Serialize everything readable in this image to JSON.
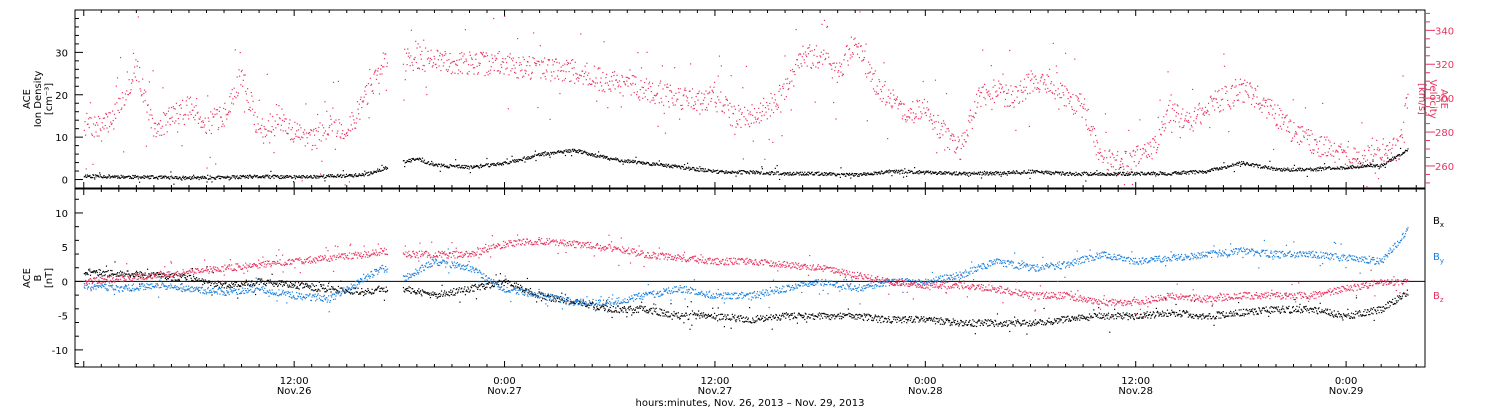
{
  "chart_data": [
    {
      "type": "scatter",
      "panel": "top",
      "x_unit": "hours since 2013-11-26 00:00 UT",
      "xlim": [
        -0.5,
        76.5
      ],
      "left_axis": {
        "label_lines": [
          "ACE",
          "Ion Density",
          "[cm⁻³]"
        ],
        "ylim": [
          -2,
          40
        ],
        "ticks": [
          0,
          10,
          20,
          30
        ]
      },
      "right_axis": {
        "label_lines": [
          "ACE",
          "Velocity",
          "[km/s]"
        ],
        "ylim": [
          247,
          352
        ],
        "ticks": [
          260,
          280,
          300,
          320,
          340
        ],
        "color": "#e8335f"
      },
      "series": [
        {
          "name": "Ion Density",
          "axis": "left",
          "color": "#000000",
          "x": [
            0,
            2,
            4,
            6,
            8,
            10,
            12,
            14,
            16,
            18,
            19,
            20,
            22,
            24,
            26,
            28,
            30,
            32,
            34,
            35,
            36,
            38,
            40,
            42,
            44,
            46,
            48,
            50,
            52,
            54,
            56,
            58,
            60,
            62,
            64,
            66,
            68,
            70,
            72,
            74,
            75.5
          ],
          "y": [
            1,
            0.8,
            0.6,
            0.5,
            0.6,
            0.8,
            0.7,
            0.9,
            1.2,
            4,
            5,
            3.5,
            3,
            4,
            6,
            7,
            5,
            4,
            3,
            2.5,
            2,
            1.8,
            1.5,
            1.5,
            1.2,
            2,
            1.8,
            1.5,
            1.6,
            2,
            1.5,
            1.4,
            1.5,
            1.6,
            2,
            4,
            2.5,
            2.5,
            3,
            3.5,
            7
          ]
        },
        {
          "name": "Velocity",
          "axis": "right",
          "color": "#e8335f",
          "x": [
            0,
            1,
            2,
            3,
            4,
            5,
            6,
            7,
            8,
            9,
            10,
            11,
            12,
            13,
            14,
            15,
            16,
            17,
            18,
            19,
            20,
            22,
            24,
            26,
            28,
            30,
            32,
            34,
            36,
            37,
            38,
            39,
            40,
            41,
            42,
            43,
            44,
            45,
            46,
            47,
            48,
            49,
            50,
            51,
            52,
            53,
            54,
            55,
            56,
            57,
            58,
            59,
            60,
            61,
            62,
            63,
            64,
            65,
            66,
            67,
            68,
            69,
            70,
            71,
            72,
            73,
            74,
            75,
            75.5
          ],
          "y": [
            285,
            282,
            295,
            318,
            280,
            290,
            295,
            285,
            290,
            315,
            280,
            290,
            280,
            275,
            285,
            280,
            300,
            320,
            322,
            324,
            322,
            321,
            320,
            318,
            316,
            310,
            305,
            300,
            300,
            290,
            290,
            295,
            305,
            325,
            325,
            315,
            335,
            310,
            300,
            290,
            295,
            280,
            270,
            300,
            305,
            300,
            310,
            310,
            300,
            295,
            265,
            262,
            265,
            270,
            295,
            285,
            295,
            300,
            305,
            300,
            290,
            280,
            275,
            270,
            265,
            265,
            270,
            270,
            300
          ]
        }
      ],
      "data_gap_hours": [
        17.3,
        18.2
      ]
    },
    {
      "type": "scatter",
      "panel": "bottom",
      "x_unit": "hours since 2013-11-26 00:00 UT",
      "xlim": [
        -0.5,
        76.5
      ],
      "y_axis": {
        "label_lines": [
          "ACE",
          "B",
          "[nT]"
        ],
        "ylim": [
          -12.5,
          13.5
        ],
        "ticks": [
          -10,
          -5,
          0,
          5,
          10
        ]
      },
      "zero_line": 0,
      "series": [
        {
          "name": "Bx",
          "legend_label": "B",
          "legend_subscript": "x",
          "color": "#000000",
          "x": [
            0,
            2,
            4,
            6,
            8,
            10,
            12,
            14,
            16,
            17,
            18.2,
            20,
            22,
            24,
            26,
            28,
            30,
            32,
            34,
            36,
            38,
            40,
            42,
            44,
            46,
            48,
            50,
            52,
            54,
            56,
            58,
            60,
            62,
            64,
            66,
            68,
            70,
            72,
            74,
            75.5
          ],
          "y": [
            1.5,
            1.2,
            1,
            0.5,
            -0.5,
            0,
            -0.5,
            -1,
            -1.5,
            -1,
            -1,
            -2,
            -1,
            0,
            -2,
            -3,
            -4,
            -4,
            -5,
            -5,
            -5.5,
            -5,
            -5,
            -5,
            -5.5,
            -5.5,
            -6,
            -6,
            -6,
            -5.5,
            -5,
            -5,
            -4.5,
            -5,
            -4.5,
            -4,
            -4,
            -5,
            -4,
            -1.5
          ]
        },
        {
          "name": "By",
          "legend_label": "B",
          "legend_subscript": "y",
          "color": "#1a7fdd",
          "x": [
            0,
            2,
            4,
            6,
            8,
            10,
            12,
            14,
            16,
            17,
            18.2,
            20,
            22,
            24,
            26,
            28,
            30,
            32,
            34,
            36,
            38,
            40,
            42,
            44,
            46,
            48,
            50,
            52,
            54,
            56,
            58,
            60,
            62,
            64,
            66,
            68,
            70,
            72,
            74,
            75.5
          ],
          "y": [
            -0.5,
            -1,
            -0.5,
            -1,
            -1.5,
            -1,
            -2,
            -2.5,
            0.5,
            2,
            0.5,
            3,
            2,
            -1,
            -2,
            -3,
            -3,
            -2,
            -1,
            -2,
            -2,
            -1,
            0,
            -1,
            0,
            0,
            1,
            3,
            2,
            2.5,
            4,
            3,
            3.5,
            4,
            4.5,
            4,
            4,
            3.5,
            3,
            7.5
          ]
        },
        {
          "name": "Bz",
          "legend_label": "B",
          "legend_subscript": "z",
          "color": "#e8335f",
          "x": [
            0,
            2,
            4,
            6,
            8,
            10,
            12,
            14,
            16,
            17,
            18.2,
            20,
            22,
            24,
            26,
            28,
            30,
            32,
            34,
            36,
            38,
            40,
            42,
            44,
            46,
            48,
            50,
            52,
            54,
            56,
            58,
            60,
            62,
            64,
            66,
            68,
            70,
            72,
            74,
            75.5
          ],
          "y": [
            0,
            0.5,
            1,
            1.5,
            2,
            2.5,
            3,
            3.5,
            4,
            4.5,
            4,
            4,
            4,
            5.5,
            6,
            5.5,
            5,
            4,
            3.5,
            3,
            3,
            2.5,
            2,
            1,
            0,
            -0.5,
            -0.5,
            -1,
            -2,
            -2,
            -3,
            -3,
            -2,
            -2.5,
            -2,
            -2,
            -2,
            -1,
            0,
            0
          ]
        }
      ],
      "data_gap_hours": [
        17.3,
        18.2
      ]
    }
  ],
  "x_axis": {
    "ticks": [
      {
        "time": "12:00",
        "date": "Nov.26",
        "hour": 12
      },
      {
        "time": "0:00",
        "date": "Nov.27",
        "hour": 24
      },
      {
        "time": "12:00",
        "date": "Nov.27",
        "hour": 36
      },
      {
        "time": "0:00",
        "date": "Nov.28",
        "hour": 48
      },
      {
        "time": "12:00",
        "date": "Nov.28",
        "hour": 60
      },
      {
        "time": "0:00",
        "date": "Nov.29",
        "hour": 72
      }
    ],
    "title": "hours:minutes, Nov. 26, 2013 – Nov. 29, 2013"
  },
  "colors": {
    "density": "#000000",
    "velocity": "#e8335f",
    "bx": "#000000",
    "by": "#1a7fdd",
    "bz": "#e8335f",
    "axes": "#000000"
  }
}
